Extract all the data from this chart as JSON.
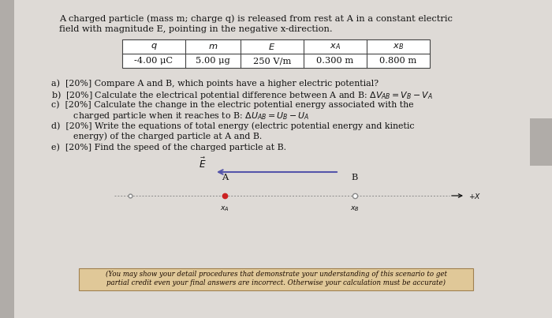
{
  "bg_color": "#c8c4c0",
  "content_color": "#dedad6",
  "text_color": "#111111",
  "table_border_color": "#444444",
  "line_color": "#666666",
  "title_line1": "A charged particle (mass m; charge q) is released from rest at A in a constant electric",
  "title_line2": "field with magnitude E, pointing in the negative x-direction.",
  "table_headers": [
    "q",
    "m",
    "E",
    "x_A",
    "x_B"
  ],
  "table_values": [
    "-4.00 μC",
    "5.00 μg",
    "250 V/m",
    "0.300 m",
    "0.800 m"
  ],
  "q_lines": [
    "a)  [20%] Compare A and B, which points have a higher electric potential?",
    "b)  [20%] Calculate the electrical potential difference between A and B: ΔVᴀᴃ = Vᴃ − Vᴀ",
    "c)  [20%] Calculate the change in the electric potential energy associated with the",
    "        charged particle when it reaches to B: ΔUᴀᴃ = Uᴃ − Uᴀ",
    "d)  [20%] Write the equations of total energy (electric potential energy and kinetic",
    "        energy) of the charged particle at A and B.",
    "e)  [20%] Find the speed of the charged particle at B."
  ],
  "footnote_line1": "(You may show your detail procedures that demonstrate your understanding of this scenario to get",
  "footnote_line2": "partial credit even your final answers are incorrect. Otherwise your calculation must be accurate)",
  "arrow_color": "#5555aa",
  "dot_color_A": "#cc2222",
  "dot_color_B": "#888888"
}
